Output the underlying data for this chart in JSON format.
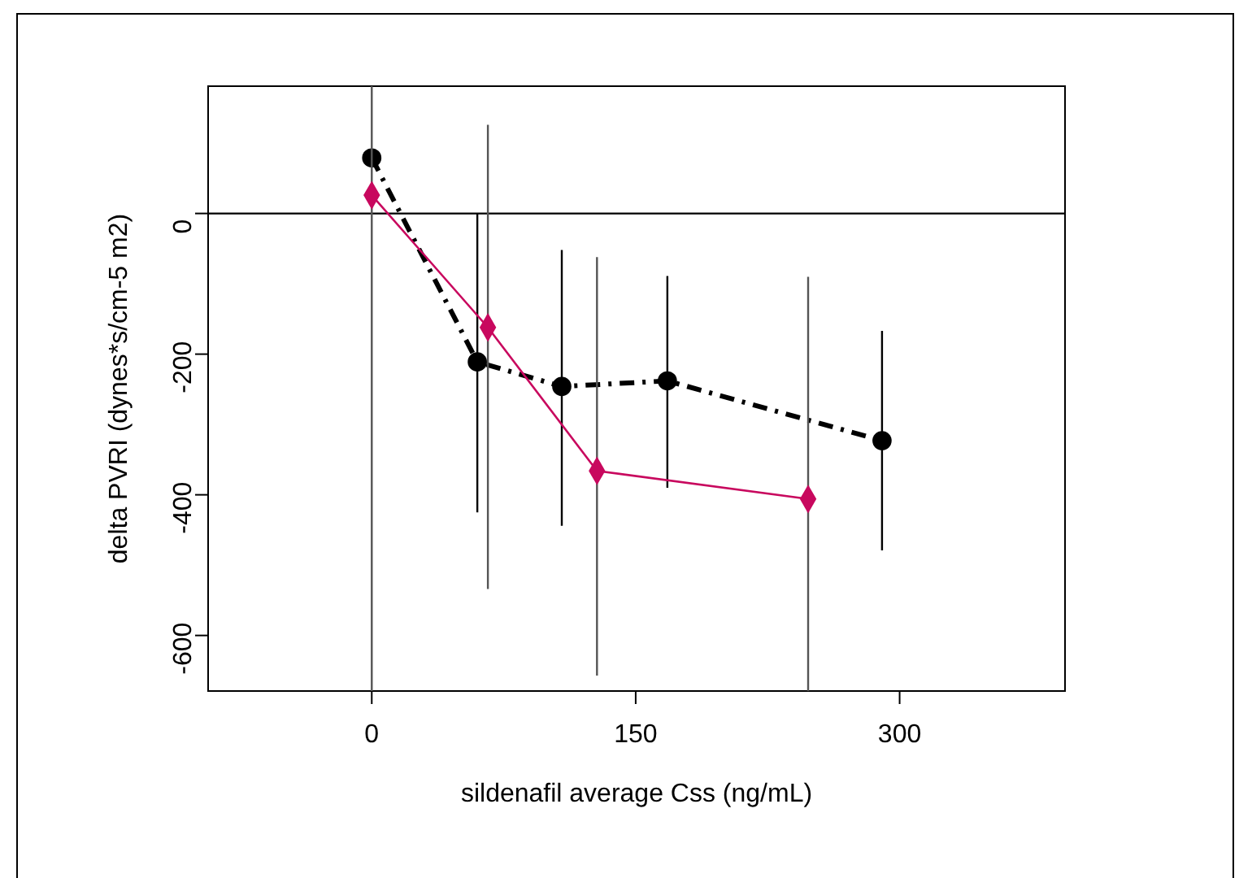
{
  "chart_data": {
    "type": "line",
    "xlabel": "sildenafil average Css (ng/mL)",
    "ylabel": "delta PVRI (dynes*s/cm-5 m2)",
    "xlim": [
      -93,
      394
    ],
    "xticks": [
      0,
      150,
      300
    ],
    "ylim": [
      -679,
      181
    ],
    "yticks": [
      0,
      -200,
      -400,
      -600
    ],
    "grid": false,
    "ref_lines": [
      {
        "axis": "y",
        "value": 0,
        "color": "#000000"
      }
    ],
    "series": [
      {
        "color": "#000000",
        "marker": "circle",
        "line_style": "dashed",
        "x": [
          0,
          60,
          108,
          168,
          290
        ],
        "values": [
          79,
          -211,
          -246,
          -238,
          -323
        ],
        "errors": [
          null,
          [
            -425,
            0
          ],
          [
            -444,
            -52
          ],
          [
            -390,
            -89
          ],
          [
            -479,
            -167
          ]
        ]
      },
      {
        "color": "#c8085e",
        "marker": "diamond",
        "line_style": "solid",
        "x": [
          0,
          66,
          128,
          248
        ],
        "values": [
          26,
          -162,
          -366,
          -406
        ],
        "errors": [
          [
            -679,
            181
          ],
          [
            -534,
            126
          ],
          [
            -657,
            -62
          ],
          [
            -679,
            -90
          ]
        ]
      }
    ]
  }
}
